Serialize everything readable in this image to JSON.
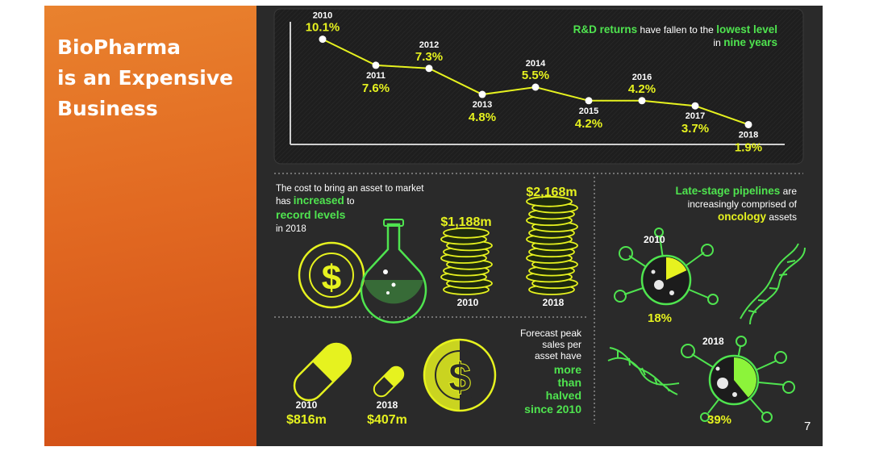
{
  "slide": {
    "title_lines": [
      "BioPharma",
      "is an Expensive",
      "Business"
    ],
    "page_number": "7"
  },
  "returns_panel": {
    "heading": {
      "part1": "R&D returns",
      "part2": " have fallen to the ",
      "part3": "lowest level",
      "part4": "in ",
      "part5": "nine years"
    },
    "points": [
      {
        "year": "2010",
        "value": 10.1,
        "label": "10.1%"
      },
      {
        "year": "2011",
        "value": 7.6,
        "label": "7.6%"
      },
      {
        "year": "2012",
        "value": 7.3,
        "label": "7.3%"
      },
      {
        "year": "2013",
        "value": 4.8,
        "label": "4.8%"
      },
      {
        "year": "2014",
        "value": 5.5,
        "label": "5.5%"
      },
      {
        "year": "2015",
        "value": 4.2,
        "label": "4.2%"
      },
      {
        "year": "2016",
        "value": 4.2,
        "label": "4.2%"
      },
      {
        "year": "2017",
        "value": 3.7,
        "label": "3.7%"
      },
      {
        "year": "2018",
        "value": 1.9,
        "label": "1.9%"
      }
    ]
  },
  "cost_panel": {
    "line1": "The cost to bring an asset to market",
    "line2a": "has ",
    "line2b": "increased",
    "line2c": " to",
    "line3": "record levels",
    "line4": "in 2018",
    "value_2010": "$1,188m",
    "value_2018": "$2,168m",
    "year_2010": "2010",
    "year_2018": "2018"
  },
  "pipeline_panel": {
    "line1a": "Late-stage pipelines",
    "line1b": " are",
    "line2": "increasingly comprised of",
    "line3a": "oncology",
    "line3b": " assets",
    "year_2010": "2010",
    "pct_2010": "18%",
    "year_2018": "2018",
    "pct_2018": "39%"
  },
  "sales_panel": {
    "lines_white": [
      "Forecast peak",
      "sales per",
      "asset have"
    ],
    "lines_green": [
      "more",
      "than",
      "halved",
      "since 2010"
    ],
    "year_2010": "2010",
    "value_2010": "$816m",
    "year_2018": "2018",
    "value_2018": "$407m"
  },
  "colors": {
    "orange": "#e26a22",
    "dark": "#2a2a2a",
    "yellow": "#e6f21f",
    "green": "#4fe44f"
  }
}
